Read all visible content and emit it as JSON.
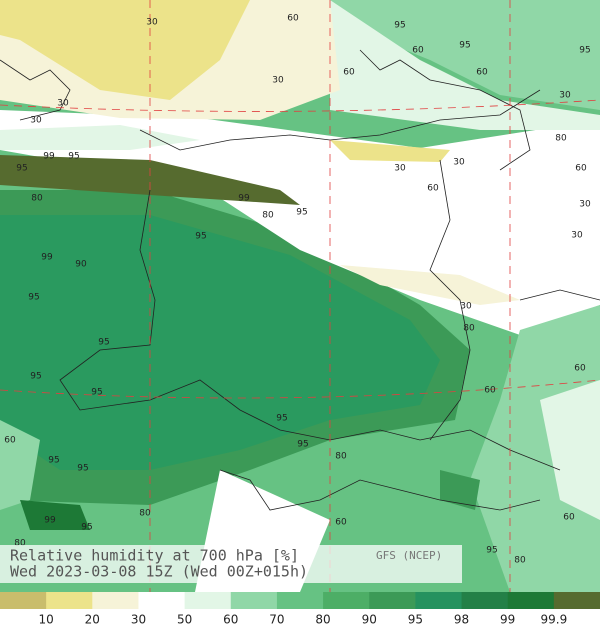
{
  "header": {
    "title": "Relative humidity at 700 hPa [%]",
    "subtitle": "Wed 2023-03-08 15Z (Wed 00Z+015h)",
    "source": "GFS (NCEP)"
  },
  "legend": {
    "labels": [
      "10",
      "20",
      "30",
      "50",
      "60",
      "70",
      "80",
      "90",
      "95",
      "98",
      "99",
      "99.9"
    ],
    "colors": [
      "#c9bd6c",
      "#ece38a",
      "#f6f3d8",
      "#ffffff",
      "#e2f6e6",
      "#90d7a7",
      "#66c283",
      "#4dae66",
      "#3c9a57",
      "#25925f",
      "#238047",
      "#1d7936",
      "#566b2f"
    ]
  },
  "contour_labels": [
    30,
    60,
    95,
    60,
    95,
    95,
    30,
    60,
    60,
    30,
    30,
    30,
    80,
    99,
    95,
    95,
    30,
    30,
    60,
    60,
    80,
    99,
    80,
    95,
    30,
    30,
    95,
    99,
    90,
    95,
    30,
    80,
    95,
    95,
    95,
    60,
    60,
    95,
    60,
    95,
    80,
    95,
    95,
    80,
    60,
    99,
    95,
    80,
    60,
    95,
    80
  ]
}
